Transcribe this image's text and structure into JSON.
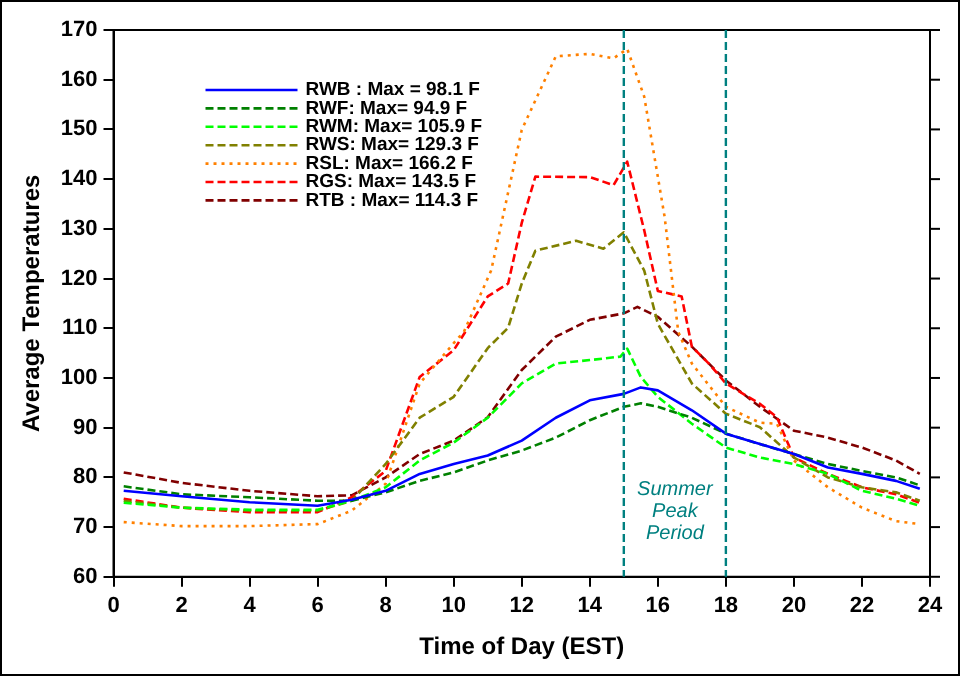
{
  "chart_data": {
    "type": "line",
    "xlabel": "Time of Day (EST)",
    "ylabel": "Average Temperatures",
    "xlim": [
      0,
      24
    ],
    "xticks": [
      0,
      2,
      4,
      6,
      8,
      10,
      12,
      14,
      16,
      18,
      20,
      22,
      24
    ],
    "ylim": [
      60,
      170
    ],
    "yticks": [
      60,
      70,
      80,
      90,
      100,
      110,
      120,
      130,
      140,
      150,
      160,
      170
    ],
    "grid": false,
    "legend": "top left",
    "marker": "none",
    "ref_lines": [
      {
        "axis": "x",
        "value": 15,
        "color": "#008080",
        "line_style": "dashed"
      },
      {
        "axis": "x",
        "value": 18,
        "color": "#008080",
        "line_style": "dashed"
      }
    ],
    "annotations": [
      "Summer Peak Period"
    ],
    "series": [
      {
        "name": "RWB : Max = 98.1 F",
        "color": "#0000ff",
        "line_style": "solid",
        "x": [
          0.3,
          2,
          4,
          6,
          7,
          8,
          9,
          10,
          11,
          12,
          13,
          14,
          15,
          15.5,
          16,
          17,
          18,
          19,
          20,
          21,
          22,
          23,
          23.7
        ],
        "values": [
          77.3,
          76.2,
          75,
          74.3,
          75.5,
          77.3,
          80.7,
          82.7,
          84.4,
          87.4,
          92,
          95.5,
          96.8,
          98.1,
          97.5,
          93.5,
          88.8,
          86.7,
          84.7,
          82,
          80.7,
          79.3,
          77.7
        ]
      },
      {
        "name": "RWF: Max= 94.9 F",
        "color": "#008000",
        "line_style": "dashed",
        "x": [
          0.3,
          2,
          4,
          6,
          7,
          8,
          9,
          10,
          11,
          12,
          13,
          14,
          15,
          15.5,
          16,
          17,
          18,
          19,
          20,
          21,
          22,
          23,
          23.7
        ],
        "values": [
          78.2,
          76.6,
          76,
          75.3,
          75.3,
          77,
          79.3,
          81,
          83.4,
          85.4,
          88,
          91.5,
          94.2,
          94.9,
          94.2,
          92,
          88.8,
          86.7,
          84.7,
          82.7,
          81.3,
          80,
          78.4
        ]
      },
      {
        "name": "RWM: Max= 105.9 F",
        "color": "#00ff00",
        "line_style": "dashed",
        "x": [
          0.3,
          2,
          4,
          6,
          7,
          8,
          9,
          10,
          11,
          12,
          13,
          14,
          14.9,
          15.1,
          15.5,
          16,
          17,
          18,
          19,
          20,
          21,
          22,
          23,
          23.7
        ],
        "values": [
          74.9,
          73.9,
          73.5,
          73.5,
          75.3,
          78,
          83.4,
          87,
          92,
          98.9,
          102.9,
          103.6,
          104.3,
          105.9,
          100.2,
          96.2,
          90.8,
          86,
          84,
          82.7,
          80.7,
          77.3,
          75.7,
          74.3
        ]
      },
      {
        "name": "RWS: Max= 129.3 F",
        "color": "#808000",
        "line_style": "dashed",
        "x": [
          0.3,
          2,
          4,
          6,
          7,
          8,
          9,
          10,
          11,
          11.6,
          12,
          12.4,
          13.6,
          14.4,
          15,
          15.6,
          16,
          17,
          18,
          19,
          20,
          21,
          22,
          23,
          23.7
        ],
        "values": [
          75.3,
          73.9,
          73.3,
          73.3,
          75.3,
          82.7,
          92,
          96.2,
          106,
          110.1,
          119,
          125.6,
          127.6,
          126,
          129.3,
          121.6,
          110.9,
          98.9,
          92.8,
          90.1,
          84,
          80,
          78,
          77,
          75.3
        ]
      },
      {
        "name": "RSL: Max= 166.2 F",
        "color": "#ff8000",
        "line_style": "dotted",
        "x": [
          0.3,
          2,
          4,
          6,
          7,
          8,
          9,
          10,
          10.3,
          11.1,
          12,
          13,
          14,
          14.7,
          15.1,
          15.6,
          16.2,
          16.6,
          17,
          18,
          19,
          19.5,
          20,
          21,
          22,
          23,
          23.7
        ],
        "values": [
          71,
          70.2,
          70.2,
          70.6,
          73.3,
          78.7,
          98.9,
          107,
          109.3,
          121.6,
          149.9,
          164.7,
          165.2,
          164.3,
          166.2,
          156.6,
          132.4,
          109.3,
          102.9,
          94.2,
          91,
          90.8,
          83.4,
          78,
          73.9,
          71.2,
          70.6
        ]
      },
      {
        "name": "RGS: Max= 143.5 F",
        "color": "#ff0000",
        "line_style": "dashed",
        "x": [
          0.3,
          2,
          4,
          6,
          7,
          8,
          9,
          10,
          11,
          11.6,
          12,
          12.4,
          14,
          14.7,
          15.1,
          15.6,
          16,
          16.7,
          17,
          17.5,
          18,
          19,
          19.5,
          20,
          21,
          22,
          23,
          23.7
        ],
        "values": [
          75.7,
          73.9,
          73,
          73,
          76,
          81.3,
          100.2,
          105.6,
          116.4,
          119,
          131.2,
          140.5,
          140.4,
          138.8,
          143.5,
          129.7,
          117.5,
          116.4,
          106.3,
          102.9,
          98.9,
          94.8,
          92.1,
          84,
          80.7,
          78,
          76.6,
          74.9
        ]
      },
      {
        "name": "RTB : Max= 114.3 F",
        "color": "#800000",
        "line_style": "dashed",
        "x": [
          0.3,
          2,
          4,
          6,
          7,
          8,
          9,
          10,
          11,
          12,
          13,
          14,
          15,
          15.4,
          16,
          17,
          18,
          19,
          20,
          21,
          22,
          23,
          23.7
        ],
        "values": [
          81,
          78.9,
          77.3,
          76.2,
          76.4,
          80,
          84.7,
          87.4,
          92.1,
          101.6,
          108.3,
          111.7,
          113,
          114.3,
          112.3,
          106.3,
          99.5,
          94.2,
          89.4,
          88,
          86,
          83.4,
          80.7
        ]
      }
    ]
  }
}
